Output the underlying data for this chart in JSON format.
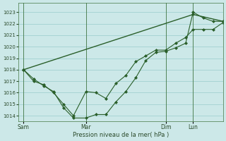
{
  "background_color": "#cce8e8",
  "grid_color": "#99cccc",
  "line_color": "#2a5f2a",
  "marker_color": "#2a5f2a",
  "xlabel": "Pression niveau de la mer( hPa )",
  "ylim": [
    1013.5,
    1023.8
  ],
  "yticks": [
    1014,
    1015,
    1016,
    1017,
    1018,
    1019,
    1020,
    1021,
    1022,
    1023
  ],
  "xtick_labels": [
    "Sam",
    "Mar",
    "Dim",
    "Lun"
  ],
  "xtick_positions": [
    0,
    25,
    57,
    68
  ],
  "vline_positions": [
    0,
    25,
    57,
    68
  ],
  "xlim": [
    -2,
    80
  ],
  "series1_x": [
    0,
    4,
    8,
    12,
    16,
    20,
    25,
    29,
    33,
    37,
    41,
    45,
    49,
    53,
    57,
    61,
    65,
    68,
    72,
    76,
    80
  ],
  "series1_y": [
    1018.0,
    1017.2,
    1016.6,
    1016.1,
    1014.7,
    1013.8,
    1013.8,
    1014.1,
    1014.1,
    1015.2,
    1016.1,
    1017.3,
    1018.8,
    1019.5,
    1019.6,
    1019.9,
    1020.3,
    1023.0,
    1022.5,
    1022.2,
    1022.2
  ],
  "series2_x": [
    0,
    4,
    8,
    12,
    16,
    20,
    25,
    29,
    33,
    37,
    41,
    45,
    49,
    53,
    57,
    61,
    65,
    68,
    72,
    76,
    80
  ],
  "series2_y": [
    1018.0,
    1017.0,
    1016.7,
    1016.0,
    1015.0,
    1014.0,
    1016.1,
    1016.0,
    1015.5,
    1016.8,
    1017.5,
    1018.7,
    1019.2,
    1019.7,
    1019.7,
    1020.3,
    1020.8,
    1021.5,
    1021.5,
    1021.5,
    1022.1
  ],
  "series3_x": [
    0,
    68,
    80
  ],
  "series3_y": [
    1018.0,
    1022.8,
    1022.2
  ]
}
